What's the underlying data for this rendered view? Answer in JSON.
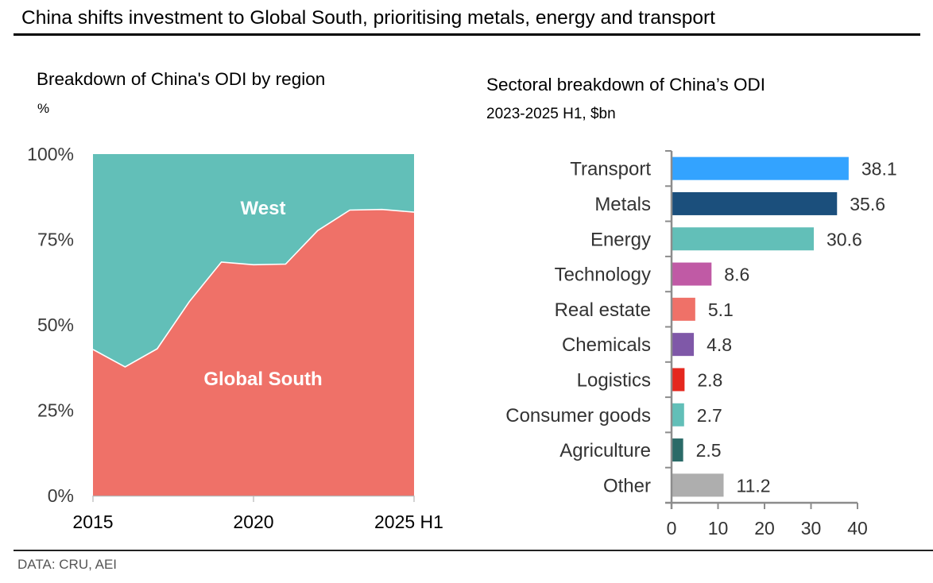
{
  "header": {
    "title": "China shifts investment to Global South, prioritising metals, energy and transport"
  },
  "footer": {
    "source": "DATA: CRU, AEI"
  },
  "colors": {
    "global_south": "#EF7168",
    "west": "#62BFB8",
    "axis": "#8c8c8c"
  },
  "chart_data": [
    {
      "type": "area",
      "stacked": true,
      "normalized": true,
      "title": "Breakdown of China's ODI by region",
      "subtitle": "%",
      "xlabel": "",
      "ylabel": "",
      "x": [
        "2015",
        "2016",
        "2017",
        "2018",
        "2019",
        "2020",
        "2021",
        "2022",
        "2023",
        "2024",
        "2025 H1"
      ],
      "x_tick_labels": [
        "2015",
        "2020",
        "2025 H1"
      ],
      "y_tick_labels": [
        "0%",
        "25%",
        "50%",
        "75%",
        "100%"
      ],
      "y_ticks": [
        0,
        25,
        50,
        75,
        100
      ],
      "ylim": [
        0,
        100
      ],
      "grid": false,
      "series": [
        {
          "name": "Global South",
          "color": "#EF7168",
          "values": [
            42.8,
            37.7,
            43.0,
            56.8,
            68.4,
            67.6,
            67.8,
            77.6,
            83.6,
            83.8,
            83.0
          ]
        },
        {
          "name": "West",
          "color": "#62BFB8",
          "values": [
            57.2,
            62.3,
            57.0,
            43.2,
            31.6,
            32.4,
            32.2,
            22.4,
            16.4,
            16.2,
            17.0
          ]
        }
      ],
      "annotations": [
        "West",
        "Global South"
      ]
    },
    {
      "type": "bar",
      "orientation": "horizontal",
      "title": "Sectoral breakdown of China’s ODI",
      "subtitle": "2023-2025 H1, $bn",
      "xlabel": "",
      "ylabel": "",
      "categories": [
        "Transport",
        "Metals",
        "Energy",
        "Technology",
        "Real estate",
        "Chemicals",
        "Logistics",
        "Consumer goods",
        "Agriculture",
        "Other"
      ],
      "values": [
        38.1,
        35.6,
        30.6,
        8.6,
        5.1,
        4.8,
        2.8,
        2.7,
        2.5,
        11.2
      ],
      "value_labels": [
        "38.1",
        "35.6",
        "30.6",
        "8.6",
        "5.1",
        "4.8",
        "2.8",
        "2.7",
        "2.5",
        "11.2"
      ],
      "colors": [
        "#33A3FF",
        "#1B4F7C",
        "#62BFB8",
        "#C05AA5",
        "#EF7168",
        "#7F58A8",
        "#E5281F",
        "#62BFB8",
        "#2A6A67",
        "#AEAEAE"
      ],
      "x_ticks": [
        0,
        10,
        20,
        30,
        40
      ],
      "x_tick_labels": [
        "0",
        "10",
        "20",
        "30",
        "40"
      ],
      "xlim": [
        0,
        40
      ],
      "grid": false
    }
  ]
}
